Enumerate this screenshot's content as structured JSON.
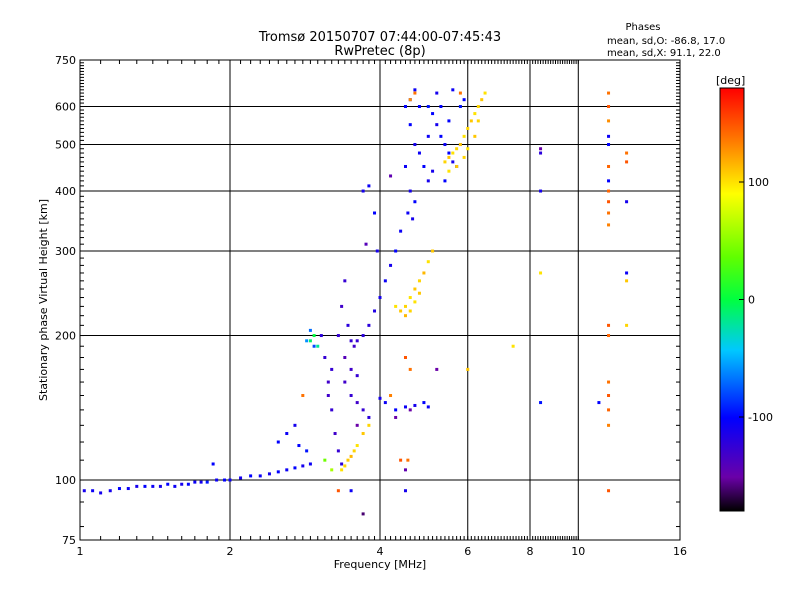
{
  "chart_data": {
    "type": "scatter",
    "title": "Tromsø 20150707 07:44:00-07:45:43",
    "subtitle": "RwPretec (8p)",
    "stats": {
      "header": "Phases",
      "line1": "mean, sd,O: -86.8, 17.0",
      "line2": "mean, sd,X:  91.1, 22.0"
    },
    "xlabel": "Frequency [MHz]",
    "ylabel": "Stationary phase Virtual Height [km]",
    "x_scale": "log",
    "y_scale": "log",
    "xlim": [
      1,
      16
    ],
    "ylim": [
      75,
      750
    ],
    "x_ticks": [
      1,
      2,
      4,
      6,
      8,
      10,
      16
    ],
    "y_ticks": [
      75,
      100,
      200,
      300,
      400,
      500,
      600,
      750
    ],
    "grid": true,
    "colorbar": {
      "label": "[deg]",
      "range": [
        -180,
        180
      ],
      "ticks": [
        100,
        0,
        -100
      ]
    },
    "series": [
      {
        "points": [
          [
            1.02,
            95,
            -110
          ],
          [
            1.06,
            95,
            -105
          ],
          [
            1.1,
            94,
            -110
          ],
          [
            1.15,
            95,
            -110
          ],
          [
            1.2,
            96,
            -100
          ],
          [
            1.25,
            96,
            -105
          ],
          [
            1.3,
            97,
            -110
          ],
          [
            1.35,
            97,
            -100
          ],
          [
            1.4,
            97,
            -105
          ],
          [
            1.45,
            97,
            -110
          ],
          [
            1.5,
            98,
            -100
          ],
          [
            1.55,
            97,
            -105
          ],
          [
            1.6,
            98,
            -110
          ],
          [
            1.65,
            98,
            -100
          ],
          [
            1.7,
            99,
            -105
          ],
          [
            1.75,
            99,
            -110
          ],
          [
            1.8,
            99,
            -95
          ],
          [
            1.85,
            108,
            -100
          ],
          [
            1.88,
            100,
            -105
          ],
          [
            1.95,
            100,
            -100
          ],
          [
            2.0,
            100,
            -105
          ],
          [
            2.1,
            101,
            -110
          ],
          [
            2.2,
            102,
            -100
          ],
          [
            2.3,
            102,
            -105
          ],
          [
            2.4,
            103,
            -110
          ],
          [
            2.5,
            104,
            -100
          ],
          [
            2.6,
            105,
            -105
          ],
          [
            2.7,
            106,
            -100
          ],
          [
            2.8,
            107,
            -110
          ],
          [
            2.9,
            108,
            -105
          ],
          [
            2.5,
            120,
            -100
          ],
          [
            2.6,
            125,
            -105
          ],
          [
            2.7,
            130,
            -110
          ],
          [
            2.75,
            118,
            -100
          ],
          [
            2.85,
            115,
            -95
          ],
          [
            2.85,
            195,
            -60
          ],
          [
            2.9,
            205,
            -70
          ],
          [
            2.95,
            190,
            -80
          ],
          [
            3.05,
            200,
            -120
          ],
          [
            3.1,
            180,
            -125
          ],
          [
            3.15,
            160,
            -130
          ],
          [
            3.2,
            140,
            -125
          ],
          [
            3.25,
            125,
            -130
          ],
          [
            3.3,
            115,
            -125
          ],
          [
            3.35,
            108,
            -120
          ],
          [
            3.15,
            150,
            -130
          ],
          [
            3.2,
            170,
            -125
          ],
          [
            3.3,
            200,
            -125
          ],
          [
            3.35,
            230,
            -130
          ],
          [
            3.4,
            260,
            -125
          ],
          [
            3.45,
            210,
            -120
          ],
          [
            3.5,
            195,
            -125
          ],
          [
            3.55,
            190,
            -130
          ],
          [
            3.6,
            195,
            -125
          ],
          [
            3.7,
            200,
            -120
          ],
          [
            3.8,
            210,
            -120
          ],
          [
            3.9,
            225,
            -115
          ],
          [
            4.0,
            240,
            -110
          ],
          [
            4.1,
            260,
            -105
          ],
          [
            4.2,
            280,
            -110
          ],
          [
            4.3,
            300,
            -100
          ],
          [
            4.4,
            330,
            -105
          ],
          [
            3.4,
            160,
            -130
          ],
          [
            3.5,
            150,
            -125
          ],
          [
            3.6,
            145,
            -130
          ],
          [
            3.7,
            140,
            -125
          ],
          [
            3.8,
            135,
            -120
          ],
          [
            3.5,
            170,
            -130
          ],
          [
            3.6,
            165,
            -125
          ],
          [
            3.7,
            400,
            -110
          ],
          [
            3.8,
            410,
            -105
          ],
          [
            3.9,
            360,
            -100
          ],
          [
            3.95,
            300,
            -110
          ],
          [
            4.0,
            148,
            -110
          ],
          [
            4.1,
            145,
            -105
          ],
          [
            4.3,
            140,
            -100
          ],
          [
            4.5,
            142,
            -105
          ],
          [
            4.7,
            143,
            -110
          ],
          [
            4.9,
            145,
            -100
          ],
          [
            5.0,
            142,
            -105
          ],
          [
            4.5,
            600,
            -100
          ],
          [
            4.6,
            620,
            -110
          ],
          [
            4.7,
            650,
            -105
          ],
          [
            4.6,
            550,
            -100
          ],
          [
            4.7,
            500,
            -110
          ],
          [
            4.8,
            480,
            -105
          ],
          [
            4.9,
            450,
            -100
          ],
          [
            5.0,
            420,
            -110
          ],
          [
            4.8,
            600,
            -100
          ],
          [
            4.5,
            450,
            -105
          ],
          [
            4.6,
            400,
            -110
          ],
          [
            4.7,
            380,
            -100
          ],
          [
            4.55,
            360,
            -105
          ],
          [
            4.65,
            350,
            -110
          ],
          [
            5.0,
            600,
            -95
          ],
          [
            5.1,
            580,
            -100
          ],
          [
            5.2,
            550,
            -110
          ],
          [
            5.3,
            520,
            -100
          ],
          [
            5.4,
            500,
            -105
          ],
          [
            5.5,
            480,
            -100
          ],
          [
            5.6,
            460,
            -110
          ],
          [
            5.7,
            450,
            -100
          ],
          [
            5.8,
            600,
            -95
          ],
          [
            5.9,
            620,
            -100
          ],
          [
            5.6,
            650,
            -105
          ],
          [
            5.2,
            640,
            -110
          ],
          [
            5.3,
            600,
            -100
          ],
          [
            5.8,
            500,
            -105
          ],
          [
            5.4,
            420,
            -100
          ],
          [
            5.1,
            440,
            -110
          ],
          [
            5.0,
            520,
            -105
          ],
          [
            5.5,
            560,
            -100
          ],
          [
            8.4,
            480,
            -120
          ],
          [
            8.4,
            400,
            -110
          ],
          [
            11.5,
            500,
            -100
          ],
          [
            11.5,
            520,
            -105
          ],
          [
            12.5,
            380,
            -110
          ],
          [
            12.5,
            270,
            -105
          ],
          [
            11.5,
            420,
            -100
          ],
          [
            8.4,
            145,
            -95
          ],
          [
            11.0,
            145,
            -100
          ],
          [
            4.5,
            95,
            -110
          ],
          [
            3.5,
            95,
            -105
          ]
        ]
      },
      {
        "points": [
          [
            2.9,
            195,
            -10
          ],
          [
            2.95,
            200,
            0
          ],
          [
            3.0,
            190,
            -20
          ],
          [
            3.1,
            110,
            40
          ],
          [
            3.2,
            105,
            60
          ],
          [
            3.35,
            105,
            100
          ],
          [
            3.4,
            107,
            105
          ],
          [
            3.45,
            110,
            110
          ],
          [
            3.5,
            112,
            115
          ],
          [
            3.55,
            115,
            105
          ],
          [
            3.6,
            118,
            100
          ],
          [
            3.7,
            125,
            110
          ],
          [
            3.8,
            130,
            105
          ],
          [
            4.3,
            230,
            100
          ],
          [
            4.4,
            225,
            110
          ],
          [
            4.5,
            230,
            105
          ],
          [
            4.6,
            240,
            100
          ],
          [
            4.7,
            250,
            110
          ],
          [
            4.8,
            260,
            105
          ],
          [
            4.9,
            270,
            115
          ],
          [
            5.0,
            285,
            100
          ],
          [
            5.1,
            300,
            110
          ],
          [
            4.5,
            220,
            115
          ],
          [
            4.6,
            225,
            105
          ],
          [
            4.7,
            235,
            100
          ],
          [
            4.8,
            245,
            110
          ],
          [
            5.4,
            460,
            105
          ],
          [
            5.5,
            470,
            110
          ],
          [
            5.6,
            480,
            100
          ],
          [
            5.7,
            490,
            105
          ],
          [
            5.8,
            500,
            110
          ],
          [
            5.9,
            520,
            100
          ],
          [
            6.0,
            540,
            105
          ],
          [
            6.1,
            560,
            110
          ],
          [
            6.2,
            580,
            100
          ],
          [
            6.3,
            600,
            105
          ],
          [
            6.4,
            620,
            110
          ],
          [
            6.5,
            640,
            100
          ],
          [
            6.3,
            560,
            105
          ],
          [
            6.2,
            520,
            110
          ],
          [
            6.0,
            490,
            100
          ],
          [
            5.9,
            470,
            105
          ],
          [
            5.7,
            450,
            110
          ],
          [
            5.5,
            440,
            100
          ],
          [
            4.6,
            620,
            130
          ],
          [
            4.7,
            640,
            140
          ],
          [
            8.4,
            270,
            100
          ],
          [
            12.5,
            260,
            110
          ],
          [
            12.5,
            210,
            105
          ],
          [
            7.4,
            190,
            100
          ],
          [
            6.0,
            170,
            110
          ]
        ]
      },
      {
        "points": [
          [
            4.5,
            180,
            150
          ],
          [
            4.6,
            170,
            140
          ],
          [
            4.2,
            150,
            135
          ],
          [
            4.4,
            110,
            150
          ],
          [
            4.55,
            110,
            140
          ],
          [
            2.8,
            150,
            140
          ],
          [
            3.3,
            95,
            150
          ],
          [
            11.5,
            640,
            140
          ],
          [
            11.5,
            600,
            150
          ],
          [
            11.5,
            560,
            130
          ],
          [
            11.5,
            400,
            145
          ],
          [
            11.5,
            380,
            150
          ],
          [
            11.5,
            360,
            140
          ],
          [
            11.5,
            340,
            135
          ],
          [
            11.5,
            210,
            150
          ],
          [
            11.5,
            200,
            145
          ],
          [
            11.5,
            160,
            140
          ],
          [
            11.5,
            150,
            150
          ],
          [
            11.5,
            140,
            145
          ],
          [
            11.5,
            130,
            135
          ],
          [
            11.5,
            95,
            150
          ],
          [
            12.5,
            480,
            140
          ],
          [
            12.5,
            460,
            150
          ],
          [
            11.5,
            450,
            145
          ],
          [
            5.8,
            640,
            140
          ]
        ]
      },
      {
        "points": [
          [
            4.6,
            140,
            -150
          ],
          [
            4.5,
            105,
            -145
          ],
          [
            5.2,
            170,
            -150
          ],
          [
            3.7,
            85,
            -160
          ],
          [
            3.4,
            180,
            -140
          ],
          [
            3.6,
            130,
            -150
          ],
          [
            4.3,
            135,
            -150
          ],
          [
            8.4,
            490,
            -150
          ],
          [
            4.2,
            430,
            -145
          ],
          [
            3.75,
            310,
            -140
          ]
        ]
      }
    ]
  }
}
